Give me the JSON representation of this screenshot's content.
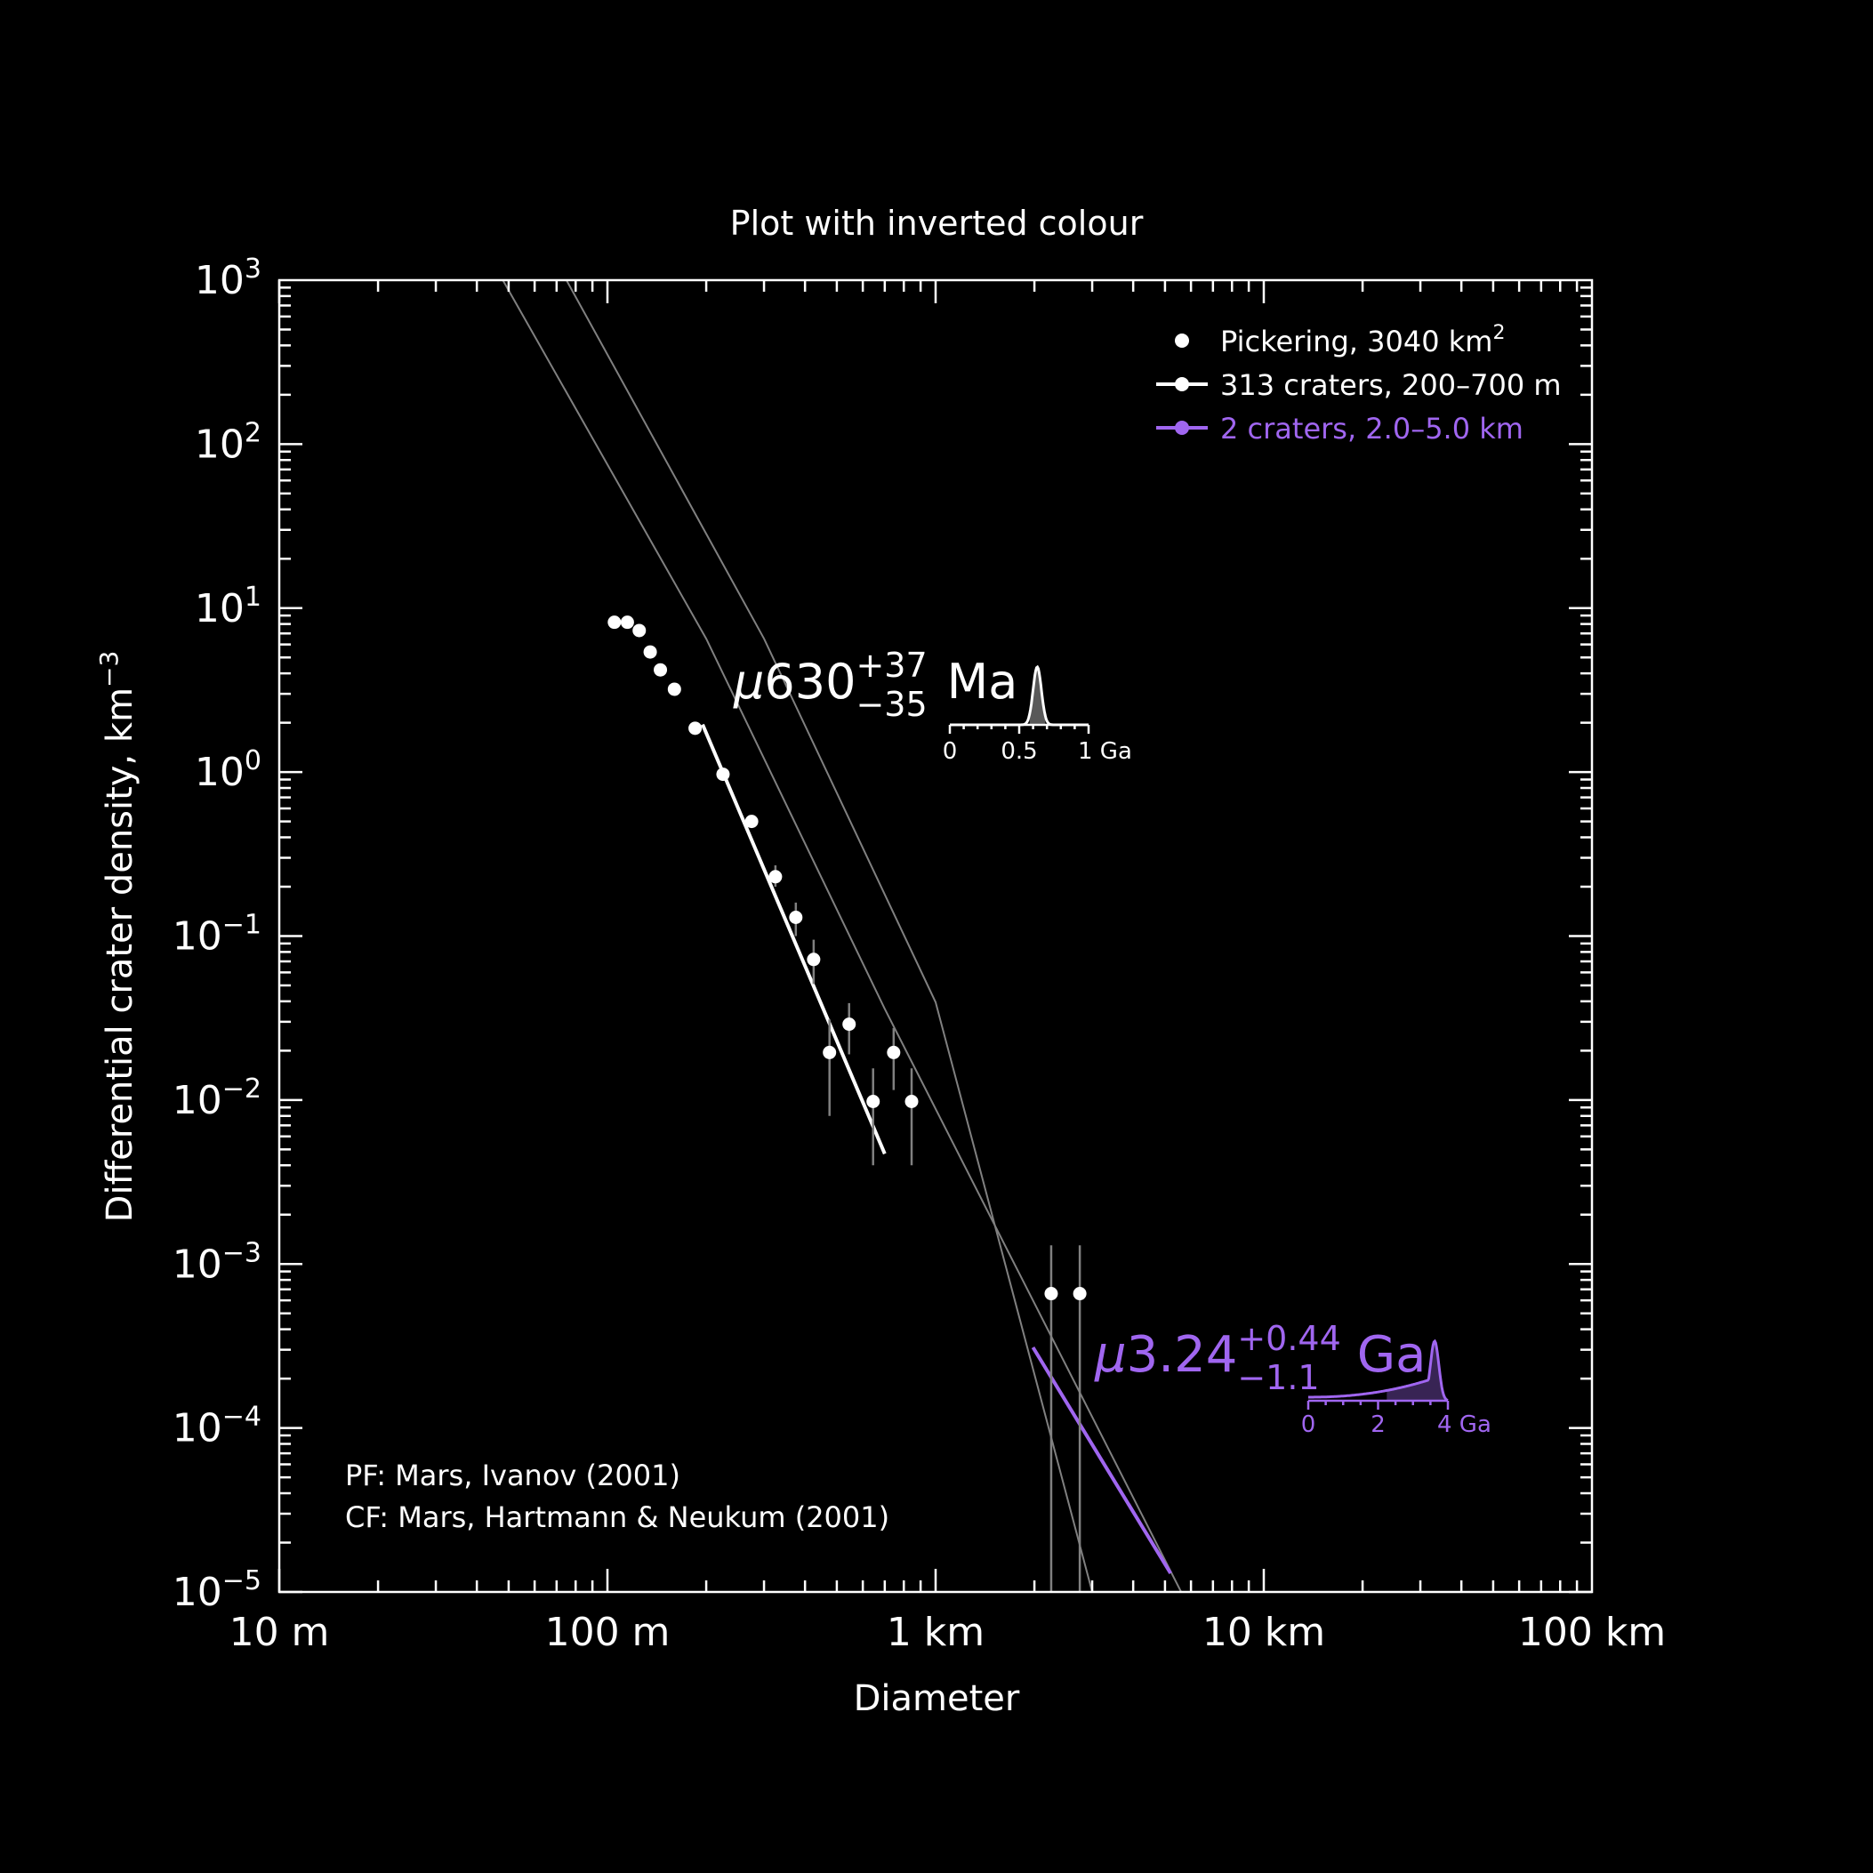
{
  "chart_data": {
    "type": "scatter",
    "title": "Plot with inverted colour",
    "xlabel": "Diameter",
    "ylabel": "Differential crater density, km",
    "ylabel_sup": "−3",
    "x_scale": "log",
    "y_scale": "log",
    "xlim_km": [
      0.01,
      100
    ],
    "ylim": [
      1e-05,
      1000
    ],
    "x_ticks": [
      {
        "value_km": 0.01,
        "label": "10 m"
      },
      {
        "value_km": 0.1,
        "label": "100 m"
      },
      {
        "value_km": 1,
        "label": "1 km"
      },
      {
        "value_km": 10,
        "label": "10 km"
      },
      {
        "value_km": 100,
        "label": "100 km"
      }
    ],
    "y_ticks": [
      {
        "value": 1000,
        "base": "10",
        "exp": "3"
      },
      {
        "value": 100,
        "base": "10",
        "exp": "2"
      },
      {
        "value": 10,
        "base": "10",
        "exp": "1"
      },
      {
        "value": 1,
        "base": "10",
        "exp": "0"
      },
      {
        "value": 0.1,
        "base": "10",
        "exp": "−1"
      },
      {
        "value": 0.01,
        "base": "10",
        "exp": "−2"
      },
      {
        "value": 0.001,
        "base": "10",
        "exp": "−3"
      },
      {
        "value": 0.0001,
        "base": "10",
        "exp": "−4"
      },
      {
        "value": 1e-05,
        "base": "10",
        "exp": "−5"
      }
    ],
    "legend": {
      "placement": "top-right",
      "entries": [
        {
          "label": "Pickering, 3040 km",
          "sup": "2",
          "color": "#ffffff",
          "style": "marker"
        },
        {
          "label": "313 craters, 200–700 m",
          "sup": "",
          "color": "#ffffff",
          "style": "line-marker"
        },
        {
          "label": "2 craters, 2.0–5.0 km",
          "sup": "",
          "color": "#a066f0",
          "style": "line-marker"
        }
      ]
    },
    "points": [
      {
        "d_km": 0.105,
        "y": 8.2,
        "err_lo": null,
        "err_hi": null
      },
      {
        "d_km": 0.115,
        "y": 8.2,
        "err_lo": null,
        "err_hi": null
      },
      {
        "d_km": 0.125,
        "y": 7.3,
        "err_lo": null,
        "err_hi": null
      },
      {
        "d_km": 0.135,
        "y": 5.4,
        "err_lo": null,
        "err_hi": null
      },
      {
        "d_km": 0.145,
        "y": 4.2,
        "err_lo": null,
        "err_hi": null
      },
      {
        "d_km": 0.16,
        "y": 3.2,
        "err_lo": null,
        "err_hi": null
      },
      {
        "d_km": 0.185,
        "y": 1.85,
        "err_lo": null,
        "err_hi": null
      },
      {
        "d_km": 0.225,
        "y": 0.97,
        "err_lo": null,
        "err_hi": null
      },
      {
        "d_km": 0.275,
        "y": 0.5,
        "err_lo": null,
        "err_hi": null
      },
      {
        "d_km": 0.325,
        "y": 0.23,
        "err_lo": 0.2,
        "err_hi": 0.27
      },
      {
        "d_km": 0.375,
        "y": 0.13,
        "err_lo": 0.1,
        "err_hi": 0.16
      },
      {
        "d_km": 0.425,
        "y": 0.072,
        "err_lo": 0.051,
        "err_hi": 0.095
      },
      {
        "d_km": 0.475,
        "y": 0.0195,
        "err_lo": 0.008,
        "err_hi": 0.031
      },
      {
        "d_km": 0.545,
        "y": 0.029,
        "err_lo": 0.019,
        "err_hi": 0.039
      },
      {
        "d_km": 0.645,
        "y": 0.0098,
        "err_lo": 0.004,
        "err_hi": 0.0156
      },
      {
        "d_km": 0.745,
        "y": 0.0195,
        "err_lo": 0.0115,
        "err_hi": 0.0275
      },
      {
        "d_km": 0.845,
        "y": 0.0098,
        "err_lo": 0.004,
        "err_hi": 0.0156
      },
      {
        "d_km": 2.25,
        "y": 0.00066,
        "err_lo": 1e-05,
        "err_hi": 0.0013
      },
      {
        "d_km": 2.75,
        "y": 0.00066,
        "err_lo": 1e-05,
        "err_hi": 0.0013
      }
    ],
    "isochrons": [
      {
        "name": "",
        "color": "#808080",
        "points": [
          [
            0.048,
            1000
          ],
          [
            0.2,
            6.5
          ],
          [
            0.7,
            0.036
          ],
          [
            5.6,
            1e-05
          ]
        ]
      },
      {
        "name": "",
        "color": "#808080",
        "points": [
          [
            0.075,
            1000
          ],
          [
            0.3,
            6.5
          ],
          [
            1.0,
            0.0395
          ],
          [
            3.0,
            1e-05
          ]
        ]
      }
    ],
    "fits": [
      {
        "name": "313 craters, 200–700 m",
        "color": "#ffffff",
        "points": [
          [
            0.195,
            1.95
          ],
          [
            0.7,
            0.0047
          ]
        ]
      },
      {
        "name": "2 craters, 2.0–5.0 km",
        "color": "#a066f0",
        "points": [
          [
            1.98,
            0.00031
          ],
          [
            5.2,
            1.3e-05
          ]
        ]
      }
    ],
    "annotations": [
      {
        "prefix": "μ",
        "value": "630",
        "sup": "+37",
        "sub": "−35",
        "unit": "Ma",
        "color": "#ffffff",
        "inset": {
          "ticks": [
            "0",
            "0.5",
            "1 Ga"
          ],
          "max": 1,
          "peak": 0.63,
          "sigma": 0.03,
          "shape": "gaussian"
        }
      },
      {
        "prefix": "μ",
        "value": "3.24",
        "sup": "+0.44",
        "sub": "−1.1",
        "unit": "Ga",
        "color": "#a066f0",
        "inset": {
          "ticks": [
            "0",
            "2",
            "4 Ga"
          ],
          "max": 4,
          "peak": 3.62,
          "sigma": 0.12,
          "shape": "skewed"
        }
      }
    ],
    "notes": [
      "PF: Mars, Ivanov (2001)",
      "CF: Mars, Hartmann & Neukum (2001)"
    ],
    "grid": false
  }
}
